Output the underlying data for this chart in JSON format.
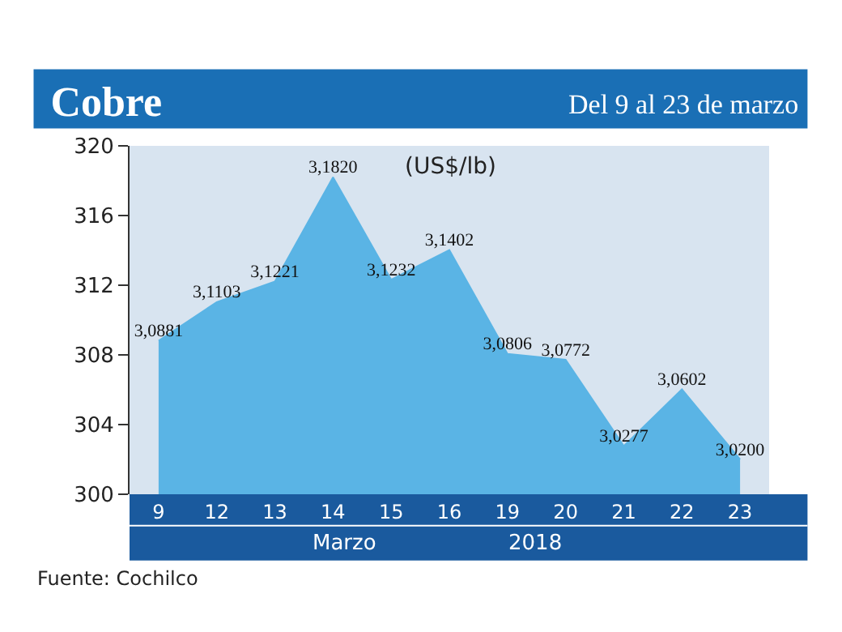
{
  "chart_data": {
    "type": "area",
    "title": "Cobre",
    "subtitle": "Del 9 al 23 de marzo",
    "ylabel": "(US$/lb)",
    "categories": [
      "9",
      "12",
      "13",
      "14",
      "15",
      "16",
      "19",
      "20",
      "21",
      "22",
      "23"
    ],
    "values": [
      308.81,
      311.03,
      312.21,
      318.2,
      312.32,
      314.02,
      308.06,
      307.72,
      302.77,
      306.02,
      302.0
    ],
    "value_labels": [
      "3,0881",
      "3,1103",
      "3,1221",
      "3,1820",
      "3,1232",
      "3,1402",
      "3,0806",
      "3,0772",
      "3,0277",
      "3,0602",
      "3,0200"
    ],
    "color": "#5ab4e5",
    "ylim": [
      300,
      320
    ],
    "yticks": [
      300,
      304,
      308,
      312,
      316,
      320
    ],
    "grid": false,
    "annotations": [
      "Marzo",
      "2018",
      "Fuente: Cochilco"
    ]
  }
}
